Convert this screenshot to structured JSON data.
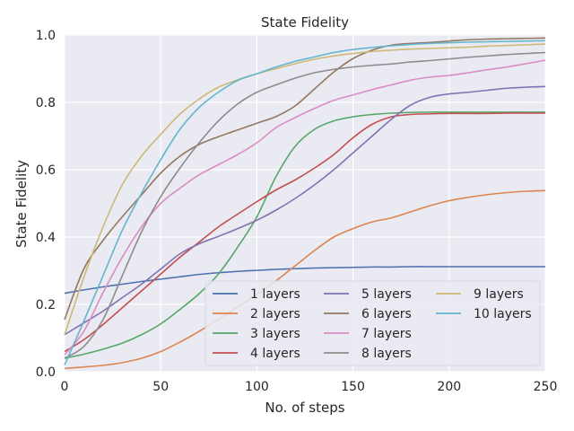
{
  "chart_data": {
    "type": "line",
    "title": "State Fidelity",
    "xlabel": "No. of steps",
    "ylabel": "State Fidelity",
    "xlim": [
      0,
      250
    ],
    "ylim": [
      0,
      1.0
    ],
    "xticks": [
      0,
      50,
      100,
      150,
      200,
      250
    ],
    "yticks": [
      0.0,
      0.2,
      0.4,
      0.6,
      0.8,
      1.0
    ],
    "xtick_labels": [
      "0",
      "50",
      "100",
      "150",
      "200",
      "250"
    ],
    "ytick_labels": [
      "0.0",
      "0.2",
      "0.4",
      "0.6",
      "0.8",
      "1.0"
    ],
    "grid": true,
    "legend": {
      "placement": "lower-right",
      "columns": 3
    },
    "x": [
      0,
      10,
      20,
      30,
      40,
      50,
      60,
      70,
      80,
      90,
      100,
      110,
      120,
      130,
      140,
      150,
      160,
      170,
      180,
      190,
      200,
      210,
      220,
      230,
      240,
      250
    ],
    "series": [
      {
        "name": "1 layers",
        "color": "#4c72b0",
        "values": [
          0.233,
          0.243,
          0.252,
          0.26,
          0.268,
          0.275,
          0.282,
          0.289,
          0.294,
          0.298,
          0.301,
          0.304,
          0.306,
          0.308,
          0.309,
          0.31,
          0.311,
          0.311,
          0.312,
          0.312,
          0.312,
          0.312,
          0.312,
          0.312,
          0.312,
          0.312
        ]
      },
      {
        "name": "2 layers",
        "color": "#dd8452",
        "values": [
          0.01,
          0.014,
          0.019,
          0.027,
          0.04,
          0.06,
          0.088,
          0.12,
          0.155,
          0.192,
          0.23,
          0.27,
          0.315,
          0.36,
          0.4,
          0.425,
          0.445,
          0.457,
          0.475,
          0.493,
          0.508,
          0.518,
          0.526,
          0.532,
          0.536,
          0.538
        ]
      },
      {
        "name": "3 layers",
        "color": "#55a868",
        "values": [
          0.04,
          0.052,
          0.067,
          0.085,
          0.11,
          0.142,
          0.185,
          0.232,
          0.29,
          0.37,
          0.46,
          0.58,
          0.67,
          0.72,
          0.745,
          0.757,
          0.764,
          0.768,
          0.77,
          0.771,
          0.771,
          0.771,
          0.771,
          0.771,
          0.771,
          0.771
        ]
      },
      {
        "name": "4 layers",
        "color": "#c44e52",
        "values": [
          0.06,
          0.095,
          0.14,
          0.19,
          0.24,
          0.29,
          0.34,
          0.385,
          0.43,
          0.468,
          0.505,
          0.54,
          0.57,
          0.605,
          0.645,
          0.695,
          0.735,
          0.757,
          0.764,
          0.766,
          0.767,
          0.767,
          0.767,
          0.768,
          0.768,
          0.768
        ]
      },
      {
        "name": "5 layers",
        "color": "#8172b3",
        "values": [
          0.11,
          0.145,
          0.18,
          0.22,
          0.26,
          0.305,
          0.35,
          0.38,
          0.402,
          0.425,
          0.45,
          0.48,
          0.515,
          0.555,
          0.6,
          0.65,
          0.7,
          0.75,
          0.792,
          0.815,
          0.825,
          0.83,
          0.836,
          0.842,
          0.845,
          0.847
        ]
      },
      {
        "name": "6 layers",
        "color": "#937860",
        "values": [
          0.155,
          0.305,
          0.39,
          0.46,
          0.525,
          0.59,
          0.64,
          0.675,
          0.698,
          0.718,
          0.738,
          0.758,
          0.79,
          0.84,
          0.89,
          0.93,
          0.955,
          0.97,
          0.975,
          0.978,
          0.982,
          0.986,
          0.988,
          0.989,
          0.99,
          0.991
        ]
      },
      {
        "name": "7 layers",
        "color": "#da8bc3",
        "values": [
          0.05,
          0.12,
          0.235,
          0.34,
          0.43,
          0.5,
          0.545,
          0.585,
          0.615,
          0.645,
          0.68,
          0.725,
          0.755,
          0.782,
          0.806,
          0.822,
          0.838,
          0.852,
          0.866,
          0.875,
          0.88,
          0.888,
          0.897,
          0.905,
          0.915,
          0.925
        ]
      },
      {
        "name": "8 layers",
        "color": "#8c8c8c",
        "values": [
          0.04,
          0.075,
          0.155,
          0.285,
          0.415,
          0.52,
          0.605,
          0.68,
          0.745,
          0.795,
          0.83,
          0.852,
          0.872,
          0.888,
          0.898,
          0.905,
          0.91,
          0.914,
          0.92,
          0.924,
          0.929,
          0.934,
          0.938,
          0.942,
          0.945,
          0.948
        ]
      },
      {
        "name": "9 layers",
        "color": "#ccb974",
        "values": [
          0.11,
          0.28,
          0.43,
          0.555,
          0.64,
          0.705,
          0.765,
          0.81,
          0.845,
          0.867,
          0.885,
          0.9,
          0.915,
          0.928,
          0.938,
          0.945,
          0.951,
          0.955,
          0.958,
          0.96,
          0.962,
          0.964,
          0.967,
          0.969,
          0.971,
          0.973
        ]
      },
      {
        "name": "10 layers",
        "color": "#64b5cd",
        "values": [
          0.02,
          0.15,
          0.285,
          0.42,
          0.53,
          0.63,
          0.72,
          0.785,
          0.83,
          0.865,
          0.885,
          0.905,
          0.922,
          0.935,
          0.948,
          0.957,
          0.963,
          0.968,
          0.972,
          0.975,
          0.977,
          0.979,
          0.98,
          0.981,
          0.982,
          0.983
        ]
      }
    ]
  }
}
